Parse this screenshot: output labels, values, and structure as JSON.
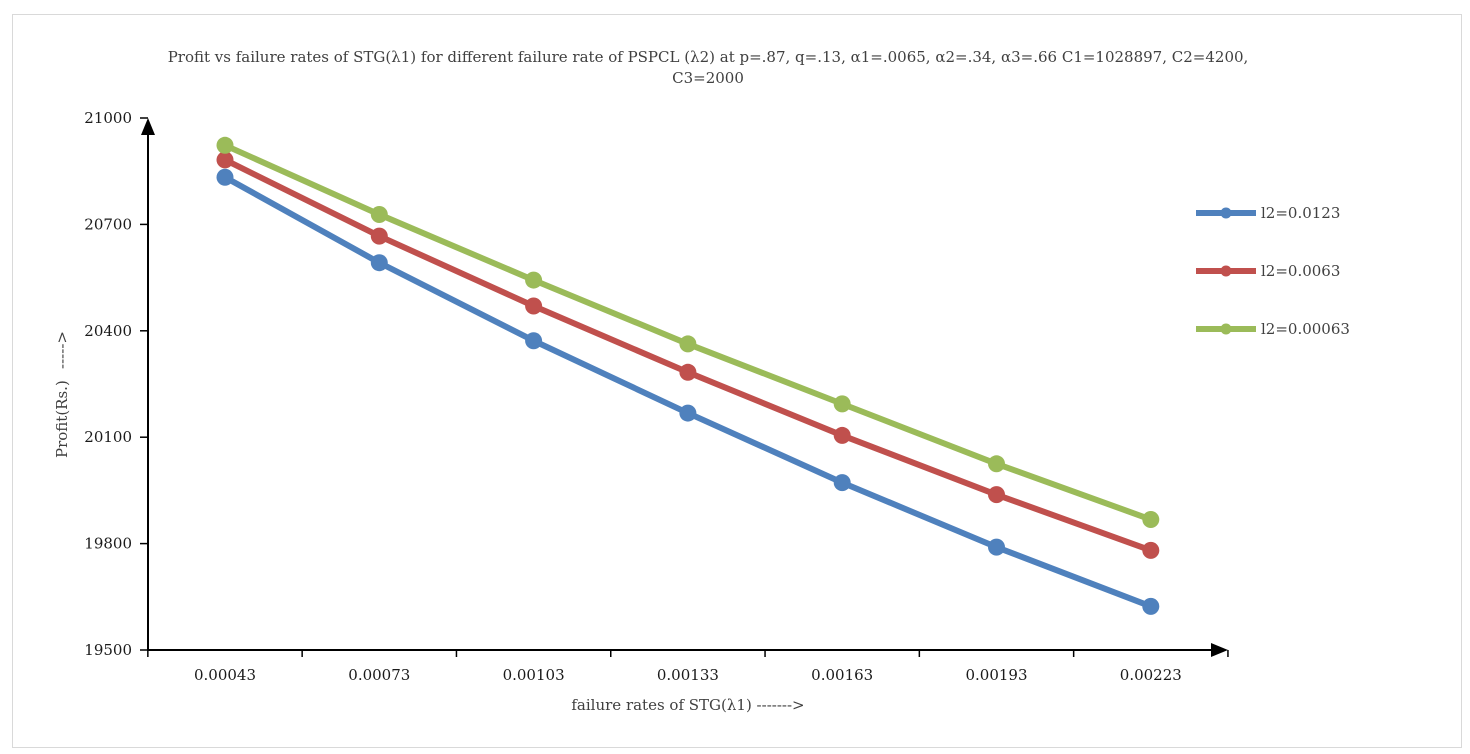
{
  "chart_data": {
    "type": "line",
    "title_line1": "Profit vs failure rates of STG(λ1) for different failure rate of PSPCL (λ2) at p=.87, q=.13, α1=.0065, α2=.34, α3=.66 C1=1028897, C2=4200,",
    "title_line2": "C3=2000",
    "xlabel": "failure rates of STG(λ1) ------->",
    "ylabel": "Profit(Rs.)",
    "ylabel_arrow": "----->",
    "categories": [
      "0.00043",
      "0.00073",
      "0.00103",
      "0.00133",
      "0.00163",
      "0.00193",
      "0.00223"
    ],
    "ylim": [
      19500,
      21000
    ],
    "yticks": [
      "19500",
      "19800",
      "20100",
      "20400",
      "20700",
      "21000"
    ],
    "legend_position": "right",
    "series": [
      {
        "name": "l2=0.0123",
        "color": "#4f81bd",
        "values": [
          20833,
          20592,
          20372,
          20168,
          19972,
          19790,
          19623
        ]
      },
      {
        "name": "l2=0.0063",
        "color": "#c0504d",
        "values": [
          20882,
          20667,
          20470,
          20283,
          20105,
          19938,
          19781
        ]
      },
      {
        "name": "l2=0.00063",
        "color": "#9bbb59",
        "values": [
          20923,
          20728,
          20543,
          20363,
          20194,
          20025,
          19868
        ]
      }
    ]
  }
}
